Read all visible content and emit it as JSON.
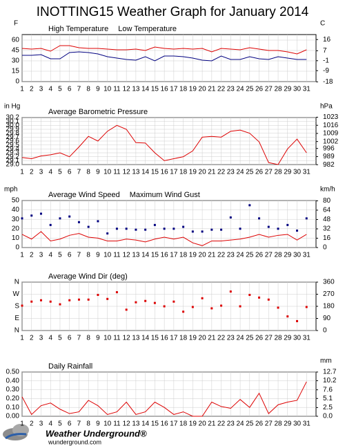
{
  "title": "INOTTING15 Weather Graph for January 2014",
  "footer": {
    "brand": "Weather Underground®",
    "site": "wunderground.com"
  },
  "chart_data": [
    {
      "type": "line",
      "y_unit": "F",
      "y2_unit": "C",
      "x": [
        1,
        2,
        3,
        4,
        5,
        6,
        7,
        8,
        9,
        10,
        11,
        12,
        13,
        14,
        15,
        16,
        17,
        18,
        19,
        20,
        21,
        22,
        23,
        24,
        25,
        26,
        27,
        28,
        29,
        30,
        31
      ],
      "xlim": [
        1,
        32
      ],
      "ylim": [
        0,
        68
      ],
      "yticks": [
        0,
        15,
        30,
        45,
        60
      ],
      "y2lim": [
        -17.78,
        20
      ],
      "y2ticks": [
        -18,
        -9,
        -1,
        7,
        16
      ],
      "grid": true,
      "series": [
        {
          "name": "High Temperature",
          "color": "#dd0000",
          "values": [
            48,
            47,
            48,
            44,
            52,
            52,
            49,
            48,
            48,
            47,
            46,
            46,
            47,
            45,
            50,
            48,
            47,
            48,
            47,
            48,
            43,
            48,
            47,
            46,
            49,
            47,
            45,
            45,
            43,
            40,
            46
          ]
        },
        {
          "name": "Low Temperature",
          "color": "#000080",
          "values": [
            38,
            38,
            39,
            33,
            33,
            42,
            43,
            42,
            40,
            36,
            34,
            32,
            31,
            36,
            30,
            37,
            37,
            36,
            34,
            31,
            30,
            37,
            32,
            32,
            36,
            33,
            32,
            36,
            34,
            32,
            32
          ]
        }
      ]
    },
    {
      "type": "line",
      "y_unit": "in Hg",
      "y2_unit": "hPa",
      "x": [
        1,
        2,
        3,
        4,
        5,
        6,
        7,
        8,
        9,
        10,
        11,
        12,
        13,
        14,
        15,
        16,
        17,
        18,
        19,
        20,
        21,
        22,
        23,
        24,
        25,
        26,
        27,
        28,
        29,
        30,
        31
      ],
      "xlim": [
        1,
        32
      ],
      "ylim": [
        29.0,
        30.2
      ],
      "yticks": [
        {
          "value": 29.0,
          "label": "29.0"
        },
        29.1,
        29.2,
        29.3,
        29.4,
        29.5,
        29.6,
        29.7,
        29.8,
        29.9,
        {
          "value": 30.0,
          "label": "30.0"
        },
        30.1,
        30.2
      ],
      "y2lim": [
        982.1,
        1022.7
      ],
      "y2ticks": [
        982,
        989,
        996,
        1002,
        1009,
        1016,
        1023
      ],
      "grid": true,
      "series": [
        {
          "name": "Average Barometric Pressure",
          "color": "#dd0000",
          "values": [
            29.18,
            29.15,
            29.22,
            29.25,
            29.3,
            29.2,
            29.45,
            29.72,
            29.6,
            29.85,
            30.0,
            29.9,
            29.56,
            29.55,
            29.3,
            29.1,
            29.15,
            29.2,
            29.35,
            29.7,
            29.72,
            29.7,
            29.85,
            29.88,
            29.8,
            29.58,
            29.05,
            29.0,
            29.4,
            29.65,
            29.3
          ]
        }
      ]
    },
    {
      "type": "line",
      "y_unit": "mph",
      "y2_unit": "km/h",
      "x": [
        1,
        2,
        3,
        4,
        5,
        6,
        7,
        8,
        9,
        10,
        11,
        12,
        13,
        14,
        15,
        16,
        17,
        18,
        19,
        20,
        21,
        22,
        23,
        24,
        25,
        26,
        27,
        28,
        29,
        30,
        31
      ],
      "xlim": [
        1,
        32
      ],
      "ylim": [
        0,
        50
      ],
      "yticks": [
        0,
        10,
        20,
        30,
        40,
        50
      ],
      "y2lim": [
        0,
        80.47
      ],
      "y2ticks": [
        0,
        16,
        32,
        48,
        64,
        80
      ],
      "grid": true,
      "series": [
        {
          "name": "Average Wind Speed",
          "color": "#dd0000",
          "mode": "line",
          "values": [
            14,
            9,
            17,
            7,
            9,
            13,
            15,
            11,
            10,
            7,
            7,
            9,
            8,
            6,
            9,
            11,
            9,
            11,
            5,
            2,
            7,
            7,
            8,
            9,
            11,
            14,
            11,
            13,
            14,
            8,
            14
          ]
        },
        {
          "name": "Maximum Wind Gust",
          "color": "#000080",
          "mode": "markers",
          "values": [
            31,
            34,
            36,
            24,
            31,
            33,
            27,
            22,
            28,
            15,
            20,
            20,
            19,
            19,
            24,
            20,
            20,
            22,
            17,
            17,
            19,
            19,
            32,
            20,
            45,
            31,
            22,
            20,
            24,
            18,
            31
          ]
        }
      ]
    },
    {
      "type": "scatter",
      "y2lim": [
        0,
        360
      ],
      "ylim": [
        0,
        360
      ],
      "x": [
        1,
        2,
        3,
        4,
        5,
        6,
        7,
        8,
        9,
        10,
        11,
        12,
        13,
        14,
        15,
        16,
        17,
        18,
        19,
        20,
        21,
        22,
        23,
        24,
        25,
        26,
        27,
        28,
        29,
        30,
        31
      ],
      "xlim": [
        1,
        32
      ],
      "yticks": [
        {
          "value": 0,
          "label": "N"
        },
        {
          "value": 90,
          "label": "E"
        },
        {
          "value": 180,
          "label": "S"
        },
        {
          "value": 270,
          "label": "W"
        },
        {
          "value": 360,
          "label": "N"
        }
      ],
      "y2ticks": [
        0,
        90,
        180,
        270,
        360
      ],
      "grid": true,
      "series": [
        {
          "name": "Average Wind Dir (deg)",
          "color": "#dd0000",
          "values": [
            185,
            215,
            225,
            215,
            195,
            225,
            230,
            230,
            265,
            235,
            285,
            155,
            210,
            220,
            205,
            180,
            215,
            140,
            175,
            240,
            165,
            185,
            290,
            180,
            265,
            245,
            230,
            170,
            105,
            70,
            175
          ]
        }
      ]
    },
    {
      "type": "line",
      "y2_unit": "mm",
      "x": [
        1,
        2,
        3,
        4,
        5,
        6,
        7,
        8,
        9,
        10,
        11,
        12,
        13,
        14,
        15,
        16,
        17,
        18,
        19,
        20,
        21,
        22,
        23,
        24,
        25,
        26,
        27,
        28,
        29,
        30,
        31
      ],
      "xlim": [
        1,
        32
      ],
      "ylim": [
        0,
        0.5
      ],
      "yticks": [
        {
          "value": 0,
          "label": "0.00"
        },
        {
          "value": 0.1,
          "label": "0.10"
        },
        {
          "value": 0.2,
          "label": "0.20"
        },
        {
          "value": 0.3,
          "label": "0.30"
        },
        {
          "value": 0.4,
          "label": "0.40"
        },
        {
          "value": 0.5,
          "label": "0.50"
        }
      ],
      "y2lim": [
        0,
        12.7
      ],
      "y2ticks": [
        {
          "value": 0,
          "label": "0.0"
        },
        2.5,
        5.1,
        7.6,
        10.2,
        12.7
      ],
      "grid": true,
      "series": [
        {
          "name": "Daily Rainfall",
          "color": "#dd0000",
          "values": [
            0.22,
            0.02,
            0.12,
            0.15,
            0.08,
            0.03,
            0.05,
            0.18,
            0.12,
            0.02,
            0.05,
            0.16,
            0.02,
            0.05,
            0.16,
            0.1,
            0.02,
            0.05,
            0.0,
            0.0,
            0.16,
            0.11,
            0.09,
            0.19,
            0.1,
            0.26,
            0.03,
            0.13,
            0.16,
            0.18,
            0.39
          ]
        }
      ]
    }
  ]
}
